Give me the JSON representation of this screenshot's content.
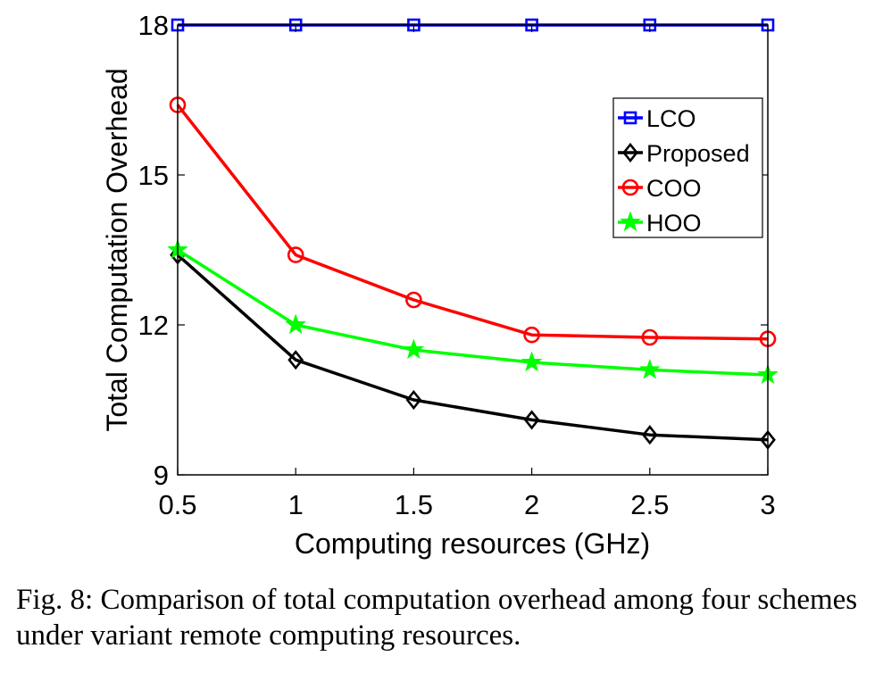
{
  "chart_data": {
    "type": "line",
    "xlabel": "Computing resources (GHz)",
    "ylabel": "Total Computation Overhead",
    "x": [
      0.5,
      1,
      1.5,
      2,
      2.5,
      3
    ],
    "xlim": [
      0.5,
      3
    ],
    "ylim": [
      9,
      18
    ],
    "xticks": [
      "0.5",
      "1",
      "1.5",
      "2",
      "2.5",
      "3"
    ],
    "yticks": [
      "9",
      "12",
      "15",
      "18"
    ],
    "grid": false,
    "legend_position": "top-right",
    "series": [
      {
        "name": "LCO",
        "values": [
          18,
          18,
          18,
          18,
          18,
          18
        ],
        "color": "#0000ff",
        "marker": "square"
      },
      {
        "name": "Proposed",
        "values": [
          13.4,
          11.3,
          10.5,
          10.1,
          9.8,
          9.7
        ],
        "color": "#000000",
        "marker": "diamond"
      },
      {
        "name": "COO",
        "values": [
          16.4,
          13.4,
          12.5,
          11.8,
          11.75,
          11.72
        ],
        "color": "#ff0000",
        "marker": "circle"
      },
      {
        "name": "HOO",
        "values": [
          13.5,
          12.0,
          11.5,
          11.25,
          11.1,
          11.0
        ],
        "color": "#00ff00",
        "marker": "star"
      }
    ]
  },
  "caption": "Fig. 8: Comparison of total computation overhead among four schemes under variant remote computing resources."
}
